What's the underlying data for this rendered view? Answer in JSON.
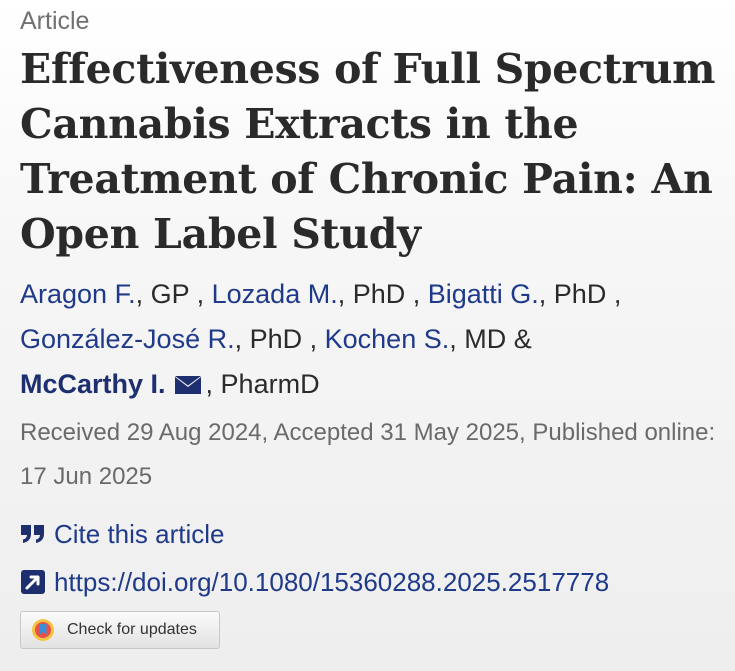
{
  "article_type": "Article",
  "title": "Effectiveness of Full Spectrum Cannabis Extracts in the Treatment of Chronic Pain: An Open Label Study",
  "authors": [
    {
      "name": "Aragon F.",
      "degree": ", GP",
      "sep": " , "
    },
    {
      "name": "Lozada M.",
      "degree": ", PhD",
      "sep": " , "
    },
    {
      "name": "Bigatti G.",
      "degree": ", PhD",
      "sep": " ,"
    },
    {
      "name": "González-José R.",
      "degree": ", PhD",
      "sep": " , "
    },
    {
      "name": "Kochen S.",
      "degree": ", MD",
      "sep": " &"
    },
    {
      "name": "McCarthy I.",
      "degree": ", PharmD",
      "sep": ""
    }
  ],
  "dates": "Received 29 Aug 2024, Accepted 31 May 2025, Published online: 17 Jun 2025",
  "cite_label": "Cite this article",
  "doi_link": "https://doi.org/10.1080/15360288.2025.2517778",
  "check_updates_label": "Check for updates",
  "icons": {
    "cite": "quote-icon",
    "doi": "external-link-icon",
    "corresponding": "mail-icon",
    "check": "crossmark-icon"
  },
  "colors": {
    "link": "#1f3a8a",
    "title": "#2a2a2a",
    "muted": "#6a6a6a"
  }
}
